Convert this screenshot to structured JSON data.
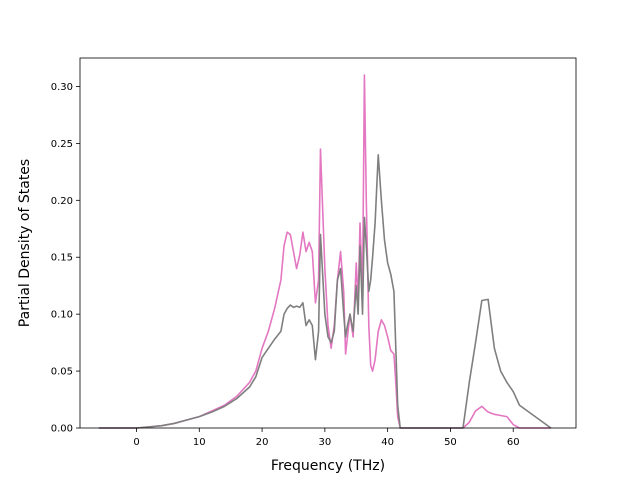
{
  "chart_data": {
    "type": "line",
    "title": "",
    "xlabel": "Frequency (THz)",
    "ylabel": "Partial Density of States",
    "xlim": [
      -9,
      70
    ],
    "ylim": [
      0,
      0.325
    ],
    "x_ticks": [
      0,
      10,
      20,
      30,
      40,
      50,
      60
    ],
    "x_tick_labels": [
      "0",
      "10",
      "20",
      "30",
      "40",
      "50",
      "60"
    ],
    "y_ticks": [
      0,
      0.05,
      0.1,
      0.15,
      0.2,
      0.25,
      0.3
    ],
    "y_tick_labels": [
      "0.00",
      "0.05",
      "0.10",
      "0.15",
      "0.20",
      "0.25",
      "0.30"
    ],
    "grid": false,
    "legend": "none",
    "series": [
      {
        "color": "#e377c2",
        "x": [
          -6,
          0,
          2,
          4,
          6,
          8,
          10,
          12,
          14,
          16,
          18,
          19,
          20,
          21,
          22,
          23,
          23.5,
          24,
          24.5,
          25,
          25.5,
          26,
          26.5,
          27,
          27.5,
          28,
          28.5,
          29,
          29.3,
          29.6,
          30,
          30.5,
          31,
          31.5,
          32,
          32.5,
          33,
          33.3,
          33.6,
          34,
          34.5,
          35,
          35.3,
          35.6,
          36,
          36.3,
          36.6,
          37,
          37.3,
          37.6,
          38,
          38.5,
          39,
          39.5,
          40,
          40.5,
          41,
          41.3,
          41.6,
          42,
          42.5,
          45,
          50,
          52,
          53,
          54,
          55,
          56,
          57,
          58,
          59,
          60,
          61,
          66
        ],
        "y": [
          0,
          0,
          0.001,
          0.002,
          0.004,
          0.007,
          0.01,
          0.015,
          0.02,
          0.028,
          0.04,
          0.05,
          0.07,
          0.085,
          0.105,
          0.13,
          0.16,
          0.172,
          0.17,
          0.155,
          0.14,
          0.152,
          0.172,
          0.155,
          0.163,
          0.155,
          0.11,
          0.13,
          0.245,
          0.2,
          0.14,
          0.09,
          0.07,
          0.09,
          0.13,
          0.155,
          0.12,
          0.065,
          0.08,
          0.1,
          0.08,
          0.145,
          0.11,
          0.18,
          0.12,
          0.31,
          0.2,
          0.09,
          0.055,
          0.05,
          0.06,
          0.085,
          0.095,
          0.09,
          0.08,
          0.068,
          0.065,
          0.04,
          0.01,
          0,
          0,
          0,
          0,
          0,
          0.005,
          0.015,
          0.019,
          0.014,
          0.012,
          0.011,
          0.01,
          0.003,
          0,
          0
        ]
      },
      {
        "color": "#7f7f7f",
        "x": [
          -6,
          0,
          2,
          4,
          6,
          8,
          10,
          12,
          14,
          16,
          18,
          19,
          20,
          21,
          22,
          23,
          23.5,
          24,
          24.5,
          25,
          25.5,
          26,
          26.5,
          27,
          27.5,
          28,
          28.5,
          29,
          29.3,
          29.6,
          30,
          30.5,
          31,
          31.5,
          32,
          32.5,
          33,
          33.3,
          33.6,
          34,
          34.5,
          35,
          35.3,
          35.6,
          36,
          36.3,
          36.6,
          37,
          37.3,
          37.6,
          38,
          38.5,
          39,
          39.5,
          40,
          40.5,
          41,
          41.3,
          41.6,
          42,
          42.5,
          45,
          50,
          52,
          53,
          54,
          55,
          56,
          57,
          58,
          59,
          60,
          61,
          66
        ],
        "y": [
          0,
          0,
          0.001,
          0.002,
          0.004,
          0.007,
          0.01,
          0.014,
          0.019,
          0.026,
          0.036,
          0.045,
          0.062,
          0.07,
          0.078,
          0.085,
          0.1,
          0.105,
          0.108,
          0.106,
          0.107,
          0.106,
          0.11,
          0.09,
          0.095,
          0.09,
          0.06,
          0.085,
          0.17,
          0.14,
          0.1,
          0.08,
          0.075,
          0.085,
          0.13,
          0.14,
          0.1,
          0.08,
          0.09,
          0.1,
          0.085,
          0.125,
          0.1,
          0.16,
          0.1,
          0.185,
          0.16,
          0.12,
          0.13,
          0.15,
          0.18,
          0.24,
          0.2,
          0.165,
          0.145,
          0.135,
          0.12,
          0.07,
          0.02,
          0,
          0,
          0,
          0,
          0,
          0.04,
          0.075,
          0.112,
          0.113,
          0.07,
          0.05,
          0.04,
          0.032,
          0.02,
          0
        ]
      }
    ]
  }
}
